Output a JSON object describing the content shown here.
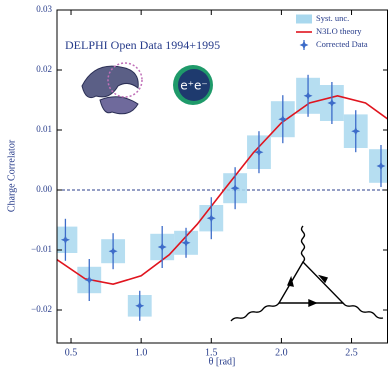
{
  "chart_data": {
    "type": "errorbar",
    "annotation": "DELPHI Open Data 1994+1995",
    "logo_text": "e⁺e⁻",
    "x_label": "θ [rad]",
    "y_label": "Charge Correlator",
    "xlim": [
      0.4,
      2.76
    ],
    "ylim": [
      -0.0255,
      0.03
    ],
    "xticks": [
      0.5,
      {
        "value": 1,
        "label": "1.0"
      },
      1.5,
      {
        "value": 2,
        "label": "2.0"
      },
      2.5
    ],
    "yticks": [
      {
        "value": -0.02,
        "label": "−0.02"
      },
      {
        "value": -0.01,
        "label": "−0.01"
      },
      {
        "value": 0,
        "label": "0.00"
      },
      0.01,
      0.02,
      0.03
    ],
    "hline": 0,
    "legend": "upper right",
    "series": [
      {
        "name": "Syst. unc.",
        "style": "box",
        "color": "#a9d8ee",
        "x_halfwidth": 0.085,
        "values": [
          0.0022,
          0.0022,
          0.002,
          0.0018,
          0.0022,
          0.002,
          0.0022,
          0.0025,
          0.0028,
          0.003,
          0.003,
          0.003,
          0.0028,
          0.0028
        ]
      },
      {
        "name": "N3LO theory",
        "style": "line",
        "color": "#e0141e",
        "x": [
          0.4,
          0.6,
          0.8,
          1.0,
          1.2,
          1.4,
          1.6,
          1.8,
          2.0,
          2.2,
          2.4,
          2.6,
          2.76
        ],
        "values": [
          -0.0116,
          -0.0148,
          -0.0157,
          -0.0143,
          -0.0108,
          -0.0057,
          0.0003,
          0.0062,
          0.0112,
          0.0145,
          0.0157,
          0.0145,
          0.0118
        ]
      },
      {
        "name": "Corrected Data",
        "style": "points",
        "color": "#3d6cc9",
        "x": [
          0.46,
          0.63,
          0.8,
          0.99,
          1.15,
          1.32,
          1.5,
          1.67,
          1.84,
          2.01,
          2.19,
          2.36,
          2.53,
          2.71
        ],
        "values": [
          -0.0083,
          -0.015,
          -0.0102,
          -0.0193,
          -0.0095,
          -0.0088,
          -0.0047,
          0.0003,
          0.0063,
          0.0118,
          0.0157,
          0.0145,
          0.0098,
          0.004
        ],
        "errors": [
          0.0035,
          0.0035,
          0.003,
          0.0025,
          0.0035,
          0.0025,
          0.0035,
          0.0035,
          0.0035,
          0.004,
          0.0035,
          0.0035,
          0.0035,
          0.0035
        ]
      }
    ]
  }
}
